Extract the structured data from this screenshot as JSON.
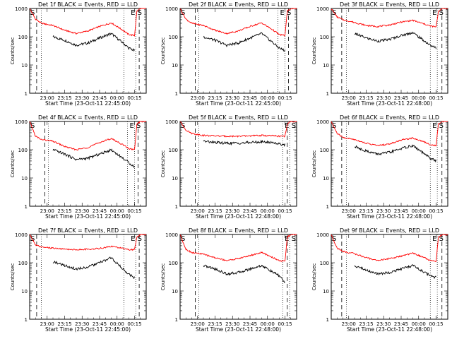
{
  "figure": {
    "title_template": "Det {det} BLACK = Events, RED = LLD",
    "ylabel": "Counts/sec",
    "xlabel": "Start Time (23-Oct-11 22:45:00)",
    "xticks": [
      "23:00",
      "23:15",
      "23:30",
      "23:45",
      "00:00",
      "00:15"
    ],
    "yticks": [
      "1",
      "10",
      "100",
      "1000"
    ],
    "flag_left": "S",
    "flag_right": "E S",
    "colors": {
      "events": "#000000",
      "lld": "#ff0000",
      "background": "#ffffff",
      "axes": "#000000"
    }
  },
  "chart_data": [
    {
      "type": "line",
      "detector": "1f",
      "title": "Det 1f BLACK = Events, RED = LLD",
      "xlabel": "Start Time (23-Oct-11 22:45:00)",
      "ylabel": "Counts/sec",
      "x_unit": "minutes after 22:45:00",
      "xlim": [
        0,
        100
      ],
      "ylim": [
        1,
        1000
      ],
      "yscale": "log",
      "x": [
        0,
        5,
        10,
        20,
        30,
        40,
        50,
        60,
        70,
        80,
        85,
        90,
        92,
        95,
        100
      ],
      "series": [
        {
          "name": "Events",
          "color": "#000000",
          "y": [
            null,
            null,
            null,
            100,
            75,
            50,
            60,
            90,
            130,
            60,
            40,
            32,
            null,
            null,
            null
          ]
        },
        {
          "name": "LLD",
          "color": "#ff0000",
          "y": [
            1000,
            420,
            300,
            250,
            170,
            130,
            160,
            230,
            310,
            170,
            120,
            110,
            800,
            1000,
            1000
          ]
        }
      ],
      "dashed_x": [
        6,
        94
      ],
      "dotted_x": [
        10,
        81,
        91
      ]
    },
    {
      "type": "line",
      "detector": "2f",
      "title": "Det 2f BLACK = Events, RED = LLD",
      "xlabel": "Start Time (23-Oct-11 22:45:00)",
      "ylabel": "Counts/sec",
      "x_unit": "minutes after 22:45:00",
      "xlim": [
        0,
        100
      ],
      "ylim": [
        1,
        1000
      ],
      "yscale": "log",
      "x": [
        0,
        5,
        10,
        20,
        30,
        40,
        50,
        60,
        70,
        80,
        85,
        90,
        92,
        95,
        100
      ],
      "series": [
        {
          "name": "Events",
          "color": "#000000",
          "y": [
            null,
            null,
            null,
            100,
            75,
            50,
            60,
            90,
            130,
            60,
            40,
            32,
            null,
            null,
            null
          ]
        },
        {
          "name": "LLD",
          "color": "#ff0000",
          "y": [
            1000,
            420,
            300,
            250,
            170,
            130,
            160,
            230,
            310,
            170,
            120,
            110,
            800,
            1000,
            1000
          ]
        }
      ],
      "dashed_x": [
        13,
        93
      ],
      "dotted_x": [
        16,
        84,
        90
      ]
    },
    {
      "type": "line",
      "detector": "3f",
      "title": "Det 3f BLACK = Events, RED = LLD",
      "xlabel": "Start Time (23-Oct-11 22:48:00)",
      "ylabel": "Counts/sec",
      "x_unit": "minutes after 22:48:00",
      "xlim": [
        0,
        100
      ],
      "ylim": [
        1,
        1000
      ],
      "yscale": "log",
      "x": [
        0,
        5,
        10,
        20,
        30,
        40,
        50,
        60,
        70,
        80,
        85,
        90,
        92,
        95,
        100
      ],
      "series": [
        {
          "name": "Events",
          "color": "#000000",
          "y": [
            null,
            null,
            null,
            130,
            90,
            70,
            80,
            110,
            140,
            70,
            50,
            40,
            null,
            null,
            null
          ]
        },
        {
          "name": "LLD",
          "color": "#ff0000",
          "y": [
            1000,
            500,
            400,
            320,
            250,
            230,
            260,
            330,
            380,
            280,
            240,
            220,
            800,
            1000,
            1000
          ]
        }
      ],
      "dashed_x": [
        9,
        95
      ],
      "dotted_x": [
        13,
        85,
        91
      ]
    },
    {
      "type": "line",
      "detector": "4f",
      "title": "Det 4f BLACK = Events, RED = LLD",
      "xlabel": "Start Time (23-Oct-11 22:45:00)",
      "ylabel": "Counts/sec",
      "x_unit": "minutes after 22:45:00",
      "xlim": [
        0,
        100
      ],
      "ylim": [
        1,
        1000
      ],
      "yscale": "log",
      "x": [
        0,
        5,
        10,
        20,
        30,
        40,
        50,
        60,
        70,
        80,
        85,
        90,
        92,
        95,
        100
      ],
      "series": [
        {
          "name": "Events",
          "color": "#000000",
          "y": [
            null,
            null,
            null,
            100,
            70,
            45,
            50,
            70,
            100,
            50,
            35,
            25,
            null,
            null,
            null
          ]
        },
        {
          "name": "LLD",
          "color": "#ff0000",
          "y": [
            1000,
            300,
            230,
            200,
            130,
            100,
            120,
            180,
            250,
            150,
            110,
            100,
            800,
            1000,
            1000
          ]
        }
      ],
      "dashed_x": [
        13,
        93
      ],
      "dotted_x": [
        16,
        84,
        90
      ]
    },
    {
      "type": "line",
      "detector": "5f",
      "title": "Det 5f BLACK = Events, RED = LLD",
      "xlabel": "Start Time (23-Oct-11 22:48:00)",
      "ylabel": "Counts/sec",
      "x_unit": "minutes after 22:48:00",
      "xlim": [
        0,
        100
      ],
      "ylim": [
        1,
        1000
      ],
      "yscale": "log",
      "x": [
        0,
        5,
        10,
        20,
        30,
        40,
        50,
        60,
        70,
        80,
        85,
        90,
        92,
        95,
        100
      ],
      "series": [
        {
          "name": "Events",
          "color": "#000000",
          "y": [
            null,
            null,
            null,
            200,
            180,
            170,
            170,
            180,
            190,
            180,
            160,
            150,
            null,
            null,
            null
          ]
        },
        {
          "name": "LLD",
          "color": "#ff0000",
          "y": [
            1000,
            500,
            380,
            320,
            310,
            300,
            300,
            310,
            320,
            310,
            300,
            300,
            800,
            1000,
            1000
          ]
        }
      ],
      "dashed_x": [
        13,
        92
      ],
      "dotted_x": [
        16,
        88,
        94
      ]
    },
    {
      "type": "line",
      "detector": "6f",
      "title": "Det 6f BLACK = Events, RED = LLD",
      "xlabel": "Start Time (23-Oct-11 22:48:00)",
      "ylabel": "Counts/sec",
      "x_unit": "minutes after 22:48:00",
      "xlim": [
        0,
        100
      ],
      "ylim": [
        1,
        1000
      ],
      "yscale": "log",
      "x": [
        0,
        5,
        10,
        20,
        30,
        40,
        50,
        60,
        70,
        80,
        85,
        90,
        92,
        95,
        100
      ],
      "series": [
        {
          "name": "Events",
          "color": "#000000",
          "y": [
            null,
            null,
            null,
            130,
            90,
            70,
            80,
            110,
            140,
            70,
            50,
            40,
            null,
            null,
            null
          ]
        },
        {
          "name": "LLD",
          "color": "#ff0000",
          "y": [
            1000,
            380,
            270,
            230,
            170,
            140,
            160,
            220,
            260,
            190,
            150,
            140,
            800,
            1000,
            1000
          ]
        }
      ],
      "dashed_x": [
        9,
        95
      ],
      "dotted_x": [
        13,
        85,
        91
      ]
    },
    {
      "type": "line",
      "detector": "7f",
      "title": "Det 7f BLACK = Events, RED = LLD",
      "xlabel": "Start Time (23-Oct-11 22:45:00)",
      "ylabel": "Counts/sec",
      "x_unit": "minutes after 22:45:00",
      "xlim": [
        0,
        100
      ],
      "ylim": [
        1,
        1000
      ],
      "yscale": "log",
      "x": [
        0,
        5,
        10,
        20,
        30,
        40,
        50,
        60,
        70,
        80,
        85,
        90,
        92,
        95,
        100
      ],
      "series": [
        {
          "name": "Events",
          "color": "#000000",
          "y": [
            null,
            null,
            null,
            110,
            80,
            60,
            70,
            100,
            150,
            60,
            40,
            30,
            null,
            null,
            null
          ]
        },
        {
          "name": "LLD",
          "color": "#ff0000",
          "y": [
            1000,
            430,
            350,
            330,
            300,
            290,
            300,
            320,
            380,
            320,
            290,
            290,
            800,
            1000,
            1000
          ]
        }
      ],
      "dashed_x": [
        6,
        94
      ],
      "dotted_x": [
        10,
        81,
        91
      ]
    },
    {
      "type": "line",
      "detector": "8f",
      "title": "Det 8f BLACK = Events, RED = LLD",
      "xlabel": "Start Time (23-Oct-11 22:48:00)",
      "ylabel": "Counts/sec",
      "x_unit": "minutes after 22:48:00",
      "xlim": [
        0,
        100
      ],
      "ylim": [
        1,
        1000
      ],
      "yscale": "log",
      "x": [
        0,
        5,
        10,
        20,
        30,
        40,
        50,
        60,
        70,
        80,
        85,
        90,
        92,
        95,
        100
      ],
      "series": [
        {
          "name": "Events",
          "color": "#000000",
          "y": [
            null,
            null,
            null,
            80,
            60,
            40,
            45,
            60,
            80,
            45,
            35,
            20,
            null,
            null,
            null
          ]
        },
        {
          "name": "LLD",
          "color": "#ff0000",
          "y": [
            1000,
            300,
            230,
            200,
            150,
            120,
            140,
            180,
            230,
            150,
            120,
            110,
            800,
            1000,
            1000
          ]
        }
      ],
      "dashed_x": [
        13,
        92
      ],
      "dotted_x": [
        16,
        88,
        94
      ]
    },
    {
      "type": "line",
      "detector": "9f",
      "title": "Det 9f BLACK = Events, RED = LLD",
      "xlabel": "Start Time (23-Oct-11 22:48:00)",
      "ylabel": "Counts/sec",
      "x_unit": "minutes after 22:48:00",
      "xlim": [
        0,
        100
      ],
      "ylim": [
        1,
        1000
      ],
      "yscale": "log",
      "x": [
        0,
        5,
        10,
        20,
        30,
        40,
        50,
        60,
        70,
        80,
        85,
        90,
        92,
        95,
        100
      ],
      "series": [
        {
          "name": "Events",
          "color": "#000000",
          "y": [
            null,
            null,
            null,
            80,
            55,
            40,
            45,
            60,
            80,
            45,
            35,
            30,
            null,
            null,
            null
          ]
        },
        {
          "name": "LLD",
          "color": "#ff0000",
          "y": [
            1000,
            330,
            250,
            210,
            150,
            120,
            140,
            170,
            220,
            150,
            120,
            110,
            800,
            1000,
            1000
          ]
        }
      ],
      "dashed_x": [
        9,
        95
      ],
      "dotted_x": [
        13,
        85,
        91
      ]
    }
  ]
}
